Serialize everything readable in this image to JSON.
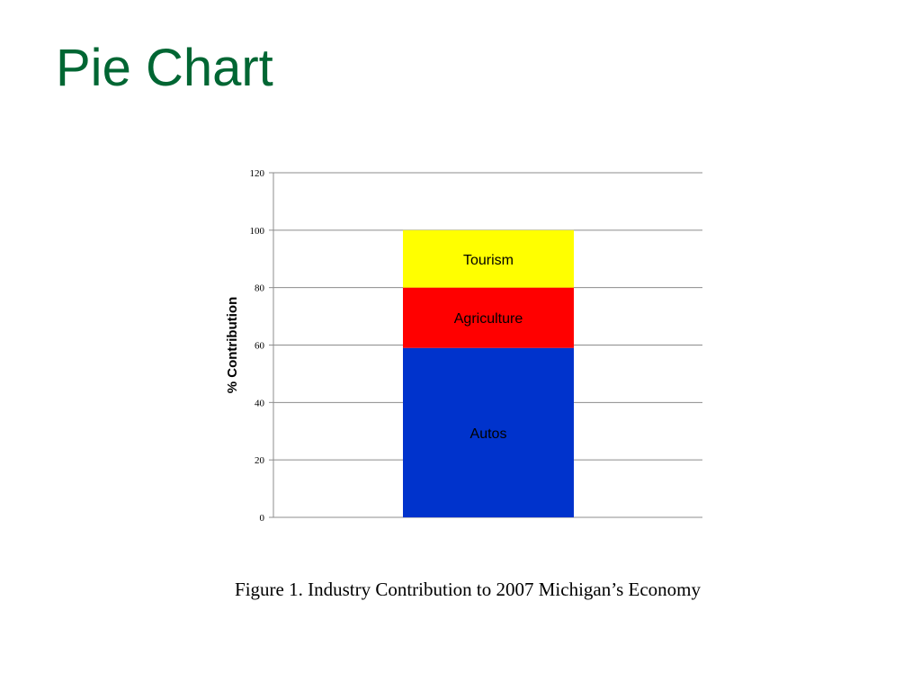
{
  "slide": {
    "title": "Pie Chart",
    "caption": "Figure 1.  Industry Contribution to 2007 Michigan’s Economy"
  },
  "colors": {
    "title": "#006633",
    "Autos": "#0033CC",
    "Agriculture": "#FF0000",
    "Tourism": "#FFFF00",
    "gridline": "#8C8C8C"
  },
  "chart_data": {
    "type": "bar",
    "stacked": true,
    "categories": [
      ""
    ],
    "series": [
      {
        "name": "Autos",
        "values": [
          59
        ]
      },
      {
        "name": "Agriculture",
        "values": [
          21
        ]
      },
      {
        "name": "Tourism",
        "values": [
          20
        ]
      }
    ],
    "title": "",
    "xlabel": "",
    "ylabel": "% Contribution",
    "ylim": [
      0,
      120
    ],
    "yticks": [
      0,
      20,
      40,
      60,
      80,
      100,
      120
    ],
    "grid": true,
    "legend": "none",
    "segment_labels": "inside"
  }
}
